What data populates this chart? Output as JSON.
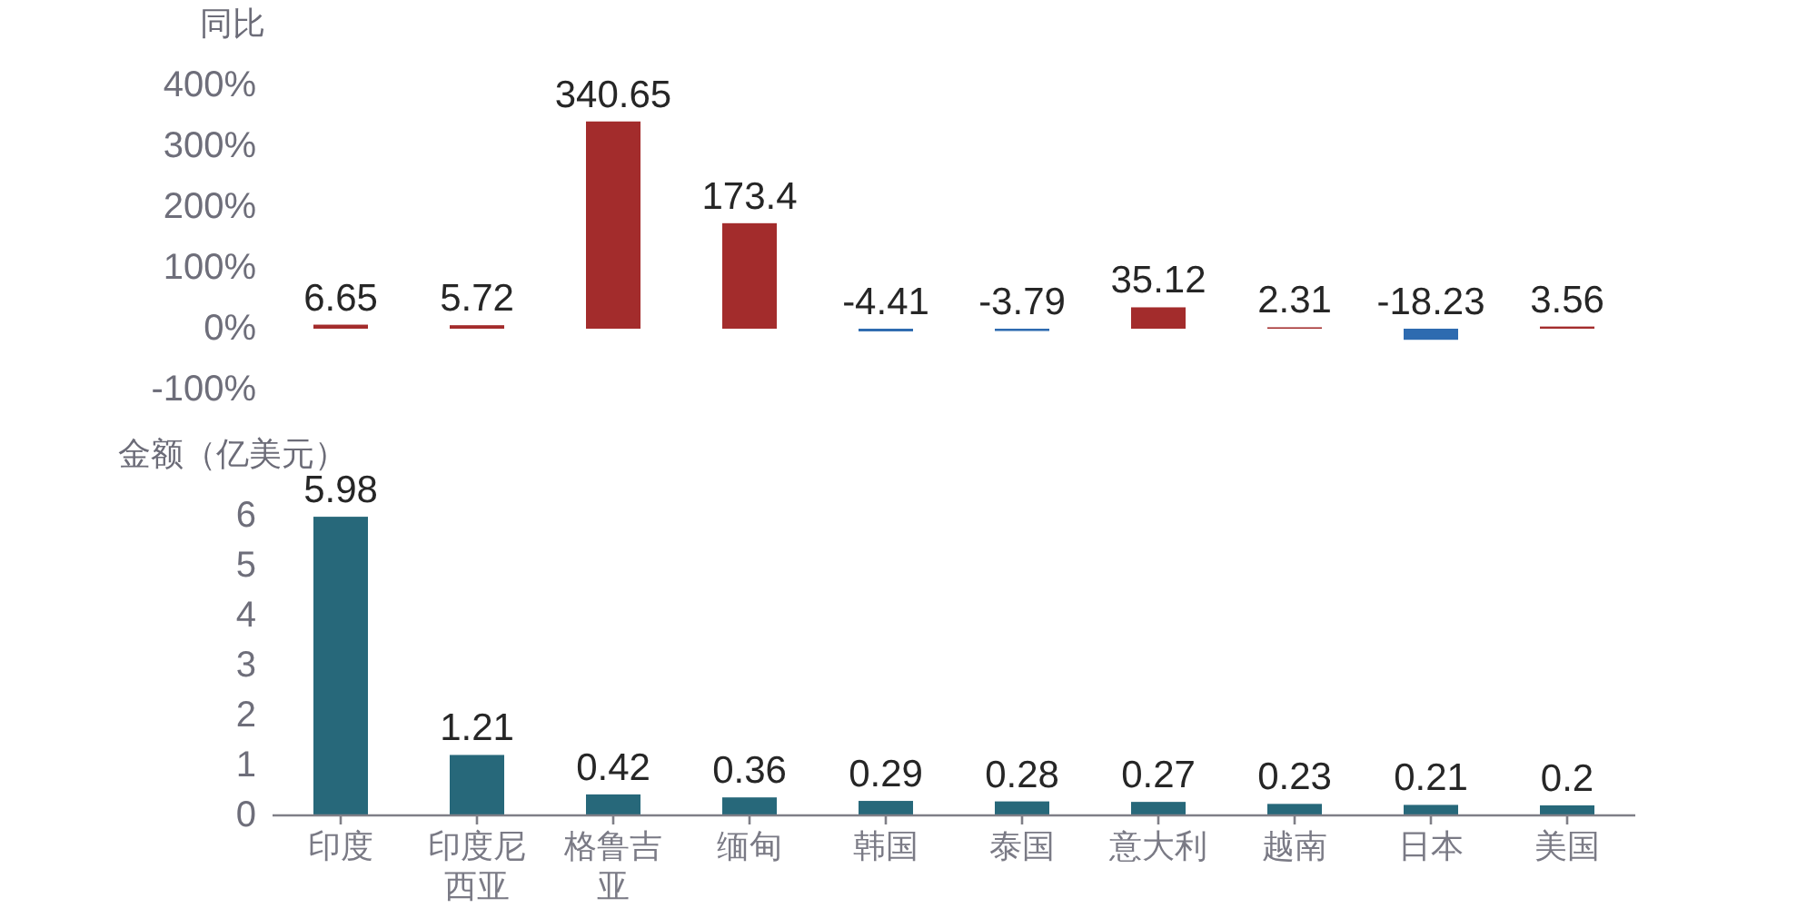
{
  "chart_data": [
    {
      "type": "bar",
      "ylabel": "同比",
      "categories": [
        "印度",
        "印度尼西亚",
        "格鲁吉亚",
        "缅甸",
        "韩国",
        "泰国",
        "意大利",
        "越南",
        "日本",
        "美国"
      ],
      "values": [
        6.65,
        5.72,
        340.65,
        173.4,
        -4.41,
        -3.79,
        35.12,
        2.31,
        -18.23,
        3.56
      ],
      "colors": [
        "#a32c2c",
        "#a32c2c",
        "#a32c2c",
        "#a32c2c",
        "#2e6bb0",
        "#2e6bb0",
        "#a32c2c",
        "#a32c2c",
        "#2e6bb0",
        "#a32c2c"
      ],
      "ylim": [
        -100,
        400
      ],
      "yticks": [
        {
          "value": -100,
          "label": "-100%"
        },
        {
          "value": 0,
          "label": "0%"
        },
        {
          "value": 100,
          "label": "100%"
        },
        {
          "value": 200,
          "label": "200%"
        },
        {
          "value": 300,
          "label": "300%"
        },
        {
          "value": 400,
          "label": "400%"
        }
      ],
      "data_labels": true,
      "tick_labels": "y"
    },
    {
      "type": "bar",
      "ylabel": "金额（亿美元）",
      "categories": [
        "印度",
        "印度尼西亚",
        "格鲁吉亚",
        "缅甸",
        "韩国",
        "泰国",
        "意大利",
        "越南",
        "日本",
        "美国"
      ],
      "values": [
        5.98,
        1.21,
        0.42,
        0.36,
        0.29,
        0.28,
        0.27,
        0.23,
        0.21,
        0.2
      ],
      "color": "#27687a",
      "ylim": [
        0,
        6
      ],
      "yticks": [
        0,
        1,
        2,
        3,
        4,
        5,
        6
      ],
      "data_labels": true
    }
  ]
}
